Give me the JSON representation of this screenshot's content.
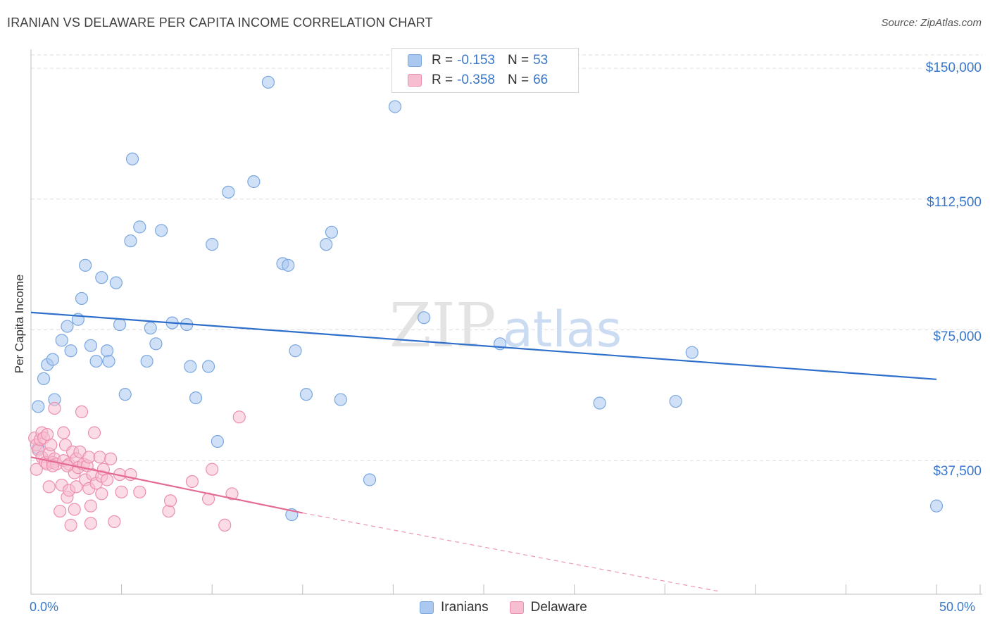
{
  "title": "IRANIAN VS DELAWARE PER CAPITA INCOME CORRELATION CHART",
  "source": "Source: ZipAtlas.com",
  "watermark": {
    "zip": "ZIP",
    "atlas": "atlas"
  },
  "legend": {
    "series": [
      {
        "r_label": "R =",
        "r_value": "-0.153",
        "n_label": "N =",
        "n_value": "53",
        "color": "#aac8f0",
        "border": "#7aa7e0"
      },
      {
        "r_label": "R =",
        "r_value": "-0.358",
        "n_label": "N =",
        "n_value": "66",
        "color": "#f7bdd0",
        "border": "#ec8fae"
      }
    ]
  },
  "bottom_legend": {
    "items": [
      "Iranians",
      "Delaware"
    ]
  },
  "chart_data": {
    "type": "scatter",
    "title": "IRANIAN VS DELAWARE PER CAPITA INCOME CORRELATION CHART",
    "xlabel": "",
    "ylabel": "Per Capita Income",
    "xlim": [
      0,
      50
    ],
    "ylim": [
      0,
      157000
    ],
    "x_tick_labels": [
      "0.0%",
      "50.0%"
    ],
    "y_ticks": [
      37500,
      75000,
      112500,
      150000
    ],
    "y_tick_labels": [
      "$37,500",
      "$75,000",
      "$112,500",
      "$150,000"
    ],
    "series": [
      {
        "name": "Iranians",
        "color": "#7aa7e0",
        "fill": "#aac8f0",
        "trend": {
          "x": [
            0,
            50
          ],
          "y": [
            80000,
            60800
          ],
          "color": "#2e6fcc"
        },
        "points": [
          [
            0.4,
            53000
          ],
          [
            0.7,
            61000
          ],
          [
            0.9,
            65000
          ],
          [
            1.2,
            66500
          ],
          [
            1.3,
            55000
          ],
          [
            1.7,
            72000
          ],
          [
            2.0,
            76000
          ],
          [
            2.2,
            69000
          ],
          [
            2.6,
            78000
          ],
          [
            2.8,
            84000
          ],
          [
            3.0,
            93500
          ],
          [
            3.3,
            70500
          ],
          [
            3.6,
            66000
          ],
          [
            3.9,
            90000
          ],
          [
            4.2,
            69000
          ],
          [
            4.3,
            66000
          ],
          [
            4.7,
            88500
          ],
          [
            4.9,
            76500
          ],
          [
            5.2,
            56500
          ],
          [
            5.5,
            100500
          ],
          [
            5.6,
            124000
          ],
          [
            6.0,
            104500
          ],
          [
            6.4,
            66000
          ],
          [
            6.6,
            75500
          ],
          [
            6.9,
            71000
          ],
          [
            7.2,
            103500
          ],
          [
            7.8,
            77000
          ],
          [
            8.6,
            76500
          ],
          [
            8.8,
            64500
          ],
          [
            9.1,
            55500
          ],
          [
            9.8,
            64500
          ],
          [
            10.0,
            99500
          ],
          [
            10.3,
            43000
          ],
          [
            10.9,
            114500
          ],
          [
            12.3,
            117500
          ],
          [
            13.1,
            146000
          ],
          [
            13.9,
            94000
          ],
          [
            14.2,
            93500
          ],
          [
            14.4,
            22000
          ],
          [
            14.6,
            69000
          ],
          [
            15.2,
            56500
          ],
          [
            16.3,
            99500
          ],
          [
            16.6,
            103000
          ],
          [
            17.1,
            55000
          ],
          [
            18.7,
            32000
          ],
          [
            20.1,
            139000
          ],
          [
            21.7,
            78500
          ],
          [
            25.9,
            71000
          ],
          [
            31.4,
            54000
          ],
          [
            35.6,
            54500
          ],
          [
            36.5,
            68500
          ],
          [
            50.0,
            24500
          ],
          [
            0.4,
            41000
          ]
        ]
      },
      {
        "name": "Delaware",
        "color": "#ec8fae",
        "fill": "#f7bdd0",
        "trend": {
          "x": [
            0,
            15
          ],
          "y": [
            38500,
            22500
          ],
          "color": "#e56a93",
          "dash_to": [
            38,
            0
          ]
        },
        "points": [
          [
            0.2,
            44000
          ],
          [
            0.3,
            42000
          ],
          [
            0.3,
            35000
          ],
          [
            0.4,
            40500
          ],
          [
            0.5,
            43500
          ],
          [
            0.6,
            38500
          ],
          [
            0.6,
            45500
          ],
          [
            0.7,
            44000
          ],
          [
            0.8,
            37000
          ],
          [
            0.9,
            36500
          ],
          [
            1.0,
            39500
          ],
          [
            1.0,
            30000
          ],
          [
            1.1,
            42000
          ],
          [
            1.2,
            37000
          ],
          [
            1.3,
            52500
          ],
          [
            1.3,
            38000
          ],
          [
            1.4,
            36500
          ],
          [
            1.6,
            23000
          ],
          [
            1.7,
            30500
          ],
          [
            1.8,
            37500
          ],
          [
            1.8,
            45500
          ],
          [
            1.9,
            42000
          ],
          [
            2.0,
            27000
          ],
          [
            2.1,
            36500
          ],
          [
            2.1,
            29000
          ],
          [
            2.2,
            19000
          ],
          [
            2.3,
            40000
          ],
          [
            2.4,
            34000
          ],
          [
            2.4,
            23500
          ],
          [
            2.5,
            30000
          ],
          [
            2.5,
            38000
          ],
          [
            2.6,
            35500
          ],
          [
            2.7,
            40000
          ],
          [
            2.8,
            51500
          ],
          [
            2.9,
            36500
          ],
          [
            3.0,
            32000
          ],
          [
            3.1,
            36000
          ],
          [
            3.2,
            38500
          ],
          [
            3.2,
            29500
          ],
          [
            3.3,
            24500
          ],
          [
            3.3,
            19500
          ],
          [
            3.4,
            33500
          ],
          [
            3.5,
            45500
          ],
          [
            3.6,
            31000
          ],
          [
            3.8,
            38500
          ],
          [
            3.9,
            28000
          ],
          [
            3.9,
            33000
          ],
          [
            4.0,
            35000
          ],
          [
            4.2,
            32000
          ],
          [
            4.6,
            20000
          ],
          [
            4.9,
            33500
          ],
          [
            5.0,
            28500
          ],
          [
            5.5,
            33500
          ],
          [
            6.0,
            28500
          ],
          [
            7.6,
            23000
          ],
          [
            7.7,
            26000
          ],
          [
            8.9,
            31500
          ],
          [
            9.8,
            26500
          ],
          [
            10.0,
            35000
          ],
          [
            10.7,
            19000
          ],
          [
            11.1,
            28000
          ],
          [
            11.5,
            50000
          ],
          [
            1.2,
            36000
          ],
          [
            0.9,
            45000
          ],
          [
            4.4,
            38000
          ],
          [
            2.0,
            36000
          ]
        ]
      }
    ]
  }
}
